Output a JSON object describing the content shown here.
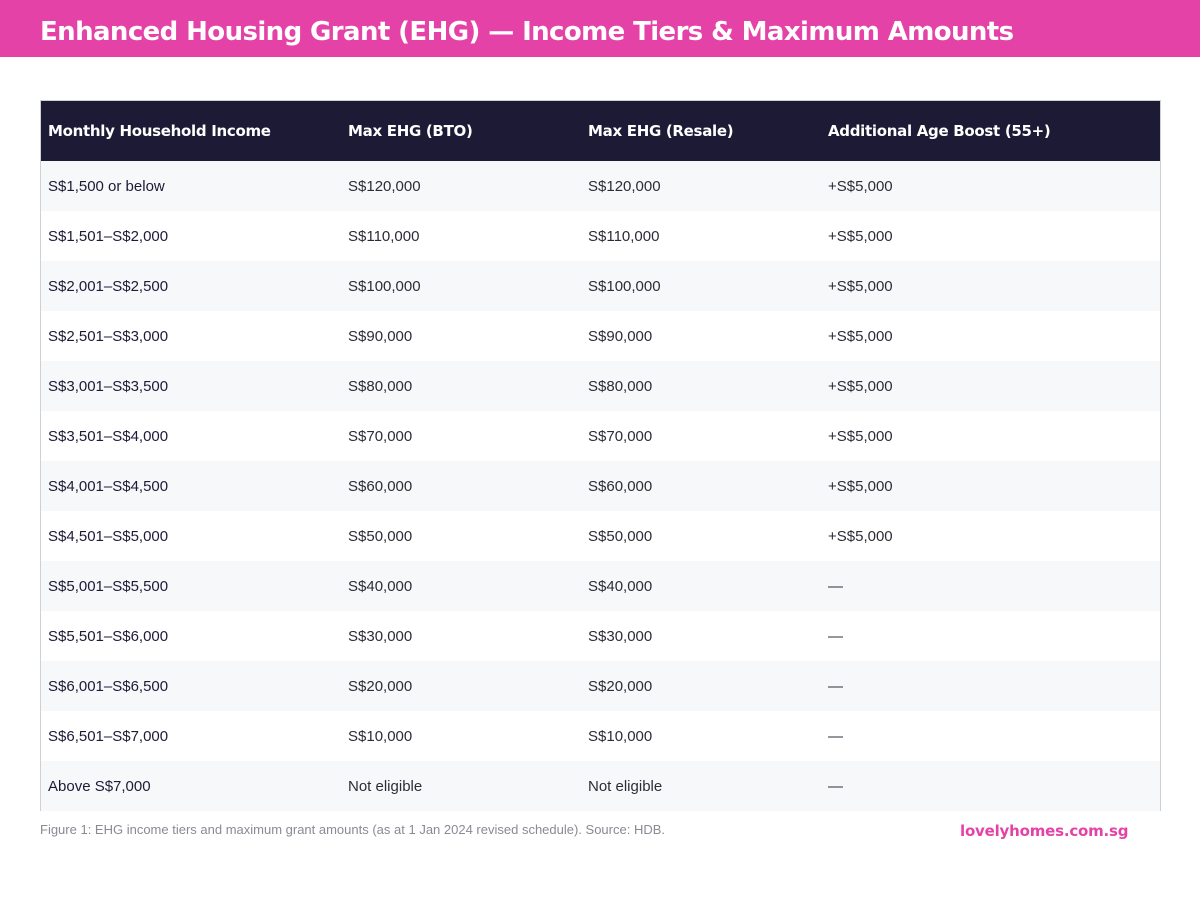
{
  "header": {
    "title": "Enhanced Housing Grant (EHG) — Income Tiers & Maximum Amounts",
    "background_color": "#e542a8"
  },
  "table": {
    "header_color": "#1d1a36",
    "columns": [
      "Monthly Household Income",
      "Max EHG (BTO)",
      "Max EHG (Resale)",
      "Additional Age Boost (55+)"
    ],
    "rows": [
      [
        "S$1,500 or below",
        "S$120,000",
        "S$120,000",
        "+S$5,000"
      ],
      [
        "S$1,501–S$2,000",
        "S$110,000",
        "S$110,000",
        "+S$5,000"
      ],
      [
        "S$2,001–S$2,500",
        "S$100,000",
        "S$100,000",
        "+S$5,000"
      ],
      [
        "S$2,501–S$3,000",
        "S$90,000",
        "S$90,000",
        "+S$5,000"
      ],
      [
        "S$3,001–S$3,500",
        "S$80,000",
        "S$80,000",
        "+S$5,000"
      ],
      [
        "S$3,501–S$4,000",
        "S$70,000",
        "S$70,000",
        "+S$5,000"
      ],
      [
        "S$4,001–S$4,500",
        "S$60,000",
        "S$60,000",
        "+S$5,000"
      ],
      [
        "S$4,501–S$5,000",
        "S$50,000",
        "S$50,000",
        "+S$5,000"
      ],
      [
        "S$5,001–S$5,500",
        "S$40,000",
        "S$40,000",
        "—"
      ],
      [
        "S$5,501–S$6,000",
        "S$30,000",
        "S$30,000",
        "—"
      ],
      [
        "S$6,001–S$6,500",
        "S$20,000",
        "S$20,000",
        "—"
      ],
      [
        "S$6,501–S$7,000",
        "S$10,000",
        "S$10,000",
        "—"
      ],
      [
        "Above S$7,000",
        "Not eligible",
        "Not eligible",
        "—"
      ]
    ]
  },
  "footer": {
    "caption": "Figure 1: EHG income tiers and maximum grant amounts (as at 1 Jan 2024 revised schedule). Source: HDB.",
    "brand": "lovelyhomes.com.sg",
    "brand_color": "#e542a8"
  }
}
